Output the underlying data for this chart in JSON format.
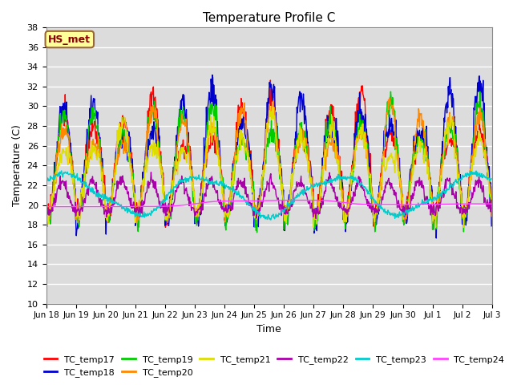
{
  "title": "Temperature Profile C",
  "xlabel": "Time",
  "ylabel": "Temperature (C)",
  "ylim": [
    10,
    38
  ],
  "yticks": [
    10,
    12,
    14,
    16,
    18,
    20,
    22,
    24,
    26,
    28,
    30,
    32,
    34,
    36,
    38
  ],
  "annotation": "HS_met",
  "annotation_color": "#8B0000",
  "annotation_bg": "#FFFF99",
  "annotation_border": "#996633",
  "background_color": "#DCDCDC",
  "grid_color": "#FFFFFF",
  "series_colors": {
    "TC_temp17": "#FF0000",
    "TC_temp18": "#0000CC",
    "TC_temp19": "#00CC00",
    "TC_temp20": "#FF8800",
    "TC_temp21": "#DDDD00",
    "TC_temp22": "#AA00AA",
    "TC_temp23": "#00CCCC",
    "TC_temp24": "#FF44FF"
  },
  "x_tick_labels": [
    "Jun 18",
    "Jun 19",
    "Jun 20",
    "Jun 21",
    "Jun 22",
    "Jun 23",
    "Jun 24",
    "Jun 25",
    "Jun 26",
    "Jun 27",
    "Jun 28",
    "Jun 29",
    "Jun 30",
    "Jul 1",
    "Jul 2",
    "Jul 3"
  ],
  "n_points": 960
}
